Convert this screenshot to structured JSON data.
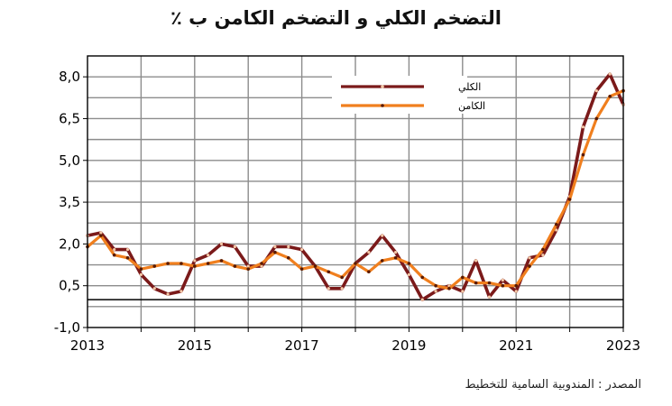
{
  "chart_data": {
    "type": "line",
    "title": "التضخم الكلي و التضخم الكامن ب ٪",
    "source": "المصدر : المندوبية السامية للتخطيط",
    "xlabel": "",
    "ylabel": "",
    "xlim": [
      2013,
      2023
    ],
    "ylim": [
      -1.0,
      8.75
    ],
    "x_ticks": [
      2013,
      2015,
      2017,
      2019,
      2021,
      2023
    ],
    "y_ticks": [
      -1.0,
      0.5,
      2.0,
      3.5,
      5.0,
      6.5,
      8.0
    ],
    "x_tick_labels": [
      "2013",
      "2015",
      "2017",
      "2019",
      "2021",
      "2023"
    ],
    "y_tick_labels": [
      "-1,0",
      "0,5",
      "2,0",
      "3,5",
      "5,0",
      "6,5",
      "8,0"
    ],
    "grid": true,
    "zero_line": true,
    "legend_position": "top-right",
    "series": [
      {
        "name": "الكلي",
        "color": "#7b1a1a",
        "points": [
          [
            2013.0,
            2.3
          ],
          [
            2013.25,
            2.4
          ],
          [
            2013.5,
            1.8
          ],
          [
            2013.75,
            1.8
          ],
          [
            2014.0,
            0.9
          ],
          [
            2014.25,
            0.4
          ],
          [
            2014.5,
            0.2
          ],
          [
            2014.75,
            0.3
          ],
          [
            2015.0,
            1.4
          ],
          [
            2015.25,
            1.6
          ],
          [
            2015.5,
            2.0
          ],
          [
            2015.75,
            1.9
          ],
          [
            2016.0,
            1.2
          ],
          [
            2016.25,
            1.2
          ],
          [
            2016.5,
            1.9
          ],
          [
            2016.75,
            1.9
          ],
          [
            2017.0,
            1.8
          ],
          [
            2017.25,
            1.2
          ],
          [
            2017.5,
            0.4
          ],
          [
            2017.75,
            0.4
          ],
          [
            2018.0,
            1.3
          ],
          [
            2018.25,
            1.7
          ],
          [
            2018.5,
            2.3
          ],
          [
            2018.75,
            1.7
          ],
          [
            2019.0,
            0.9
          ],
          [
            2019.25,
            0.0
          ],
          [
            2019.5,
            0.3
          ],
          [
            2019.75,
            0.5
          ],
          [
            2020.0,
            0.3
          ],
          [
            2020.25,
            1.4
          ],
          [
            2020.5,
            0.1
          ],
          [
            2020.75,
            0.7
          ],
          [
            2021.0,
            0.3
          ],
          [
            2021.25,
            1.5
          ],
          [
            2021.5,
            1.6
          ],
          [
            2021.75,
            2.5
          ],
          [
            2022.0,
            3.7
          ],
          [
            2022.25,
            6.2
          ],
          [
            2022.5,
            7.5
          ],
          [
            2022.75,
            8.1
          ],
          [
            2023.0,
            7.0
          ]
        ]
      },
      {
        "name": "الكامن",
        "color": "#f07f1e",
        "points": [
          [
            2013.0,
            1.9
          ],
          [
            2013.25,
            2.3
          ],
          [
            2013.5,
            1.6
          ],
          [
            2013.75,
            1.5
          ],
          [
            2014.0,
            1.1
          ],
          [
            2014.25,
            1.2
          ],
          [
            2014.5,
            1.3
          ],
          [
            2014.75,
            1.3
          ],
          [
            2015.0,
            1.2
          ],
          [
            2015.25,
            1.3
          ],
          [
            2015.5,
            1.4
          ],
          [
            2015.75,
            1.2
          ],
          [
            2016.0,
            1.1
          ],
          [
            2016.25,
            1.3
          ],
          [
            2016.5,
            1.7
          ],
          [
            2016.75,
            1.5
          ],
          [
            2017.0,
            1.1
          ],
          [
            2017.25,
            1.2
          ],
          [
            2017.5,
            1.0
          ],
          [
            2017.75,
            0.8
          ],
          [
            2018.0,
            1.3
          ],
          [
            2018.25,
            1.0
          ],
          [
            2018.5,
            1.4
          ],
          [
            2018.75,
            1.5
          ],
          [
            2019.0,
            1.3
          ],
          [
            2019.25,
            0.8
          ],
          [
            2019.5,
            0.5
          ],
          [
            2019.75,
            0.4
          ],
          [
            2020.0,
            0.8
          ],
          [
            2020.25,
            0.6
          ],
          [
            2020.5,
            0.6
          ],
          [
            2020.75,
            0.5
          ],
          [
            2021.0,
            0.5
          ],
          [
            2021.25,
            1.2
          ],
          [
            2021.5,
            1.8
          ],
          [
            2021.75,
            2.7
          ],
          [
            2022.0,
            3.6
          ],
          [
            2022.25,
            5.2
          ],
          [
            2022.5,
            6.5
          ],
          [
            2022.75,
            7.3
          ],
          [
            2023.0,
            7.5
          ]
        ]
      }
    ]
  }
}
